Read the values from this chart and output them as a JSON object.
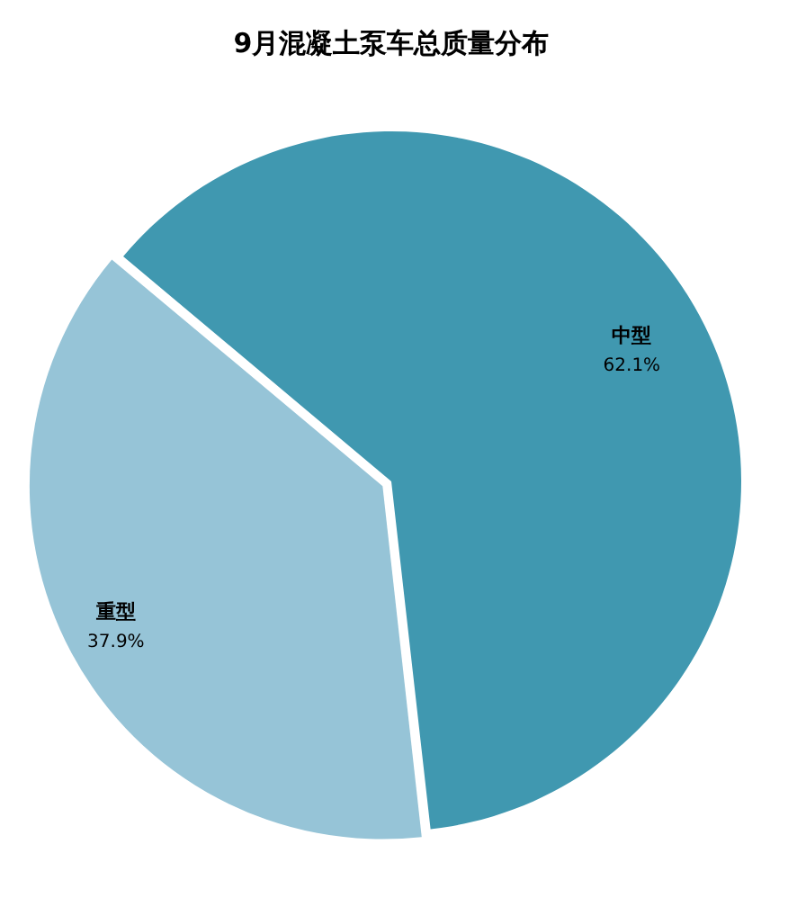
{
  "chart_data": {
    "type": "pie",
    "title": "9月混凝土泵车总质量分布",
    "categories": [
      "中型",
      "重型"
    ],
    "values": [
      62.1,
      37.9
    ],
    "colors": [
      "#4098b0",
      "#96c4d7"
    ],
    "value_labels": [
      "62.1%",
      "37.9%"
    ],
    "legend": false
  }
}
